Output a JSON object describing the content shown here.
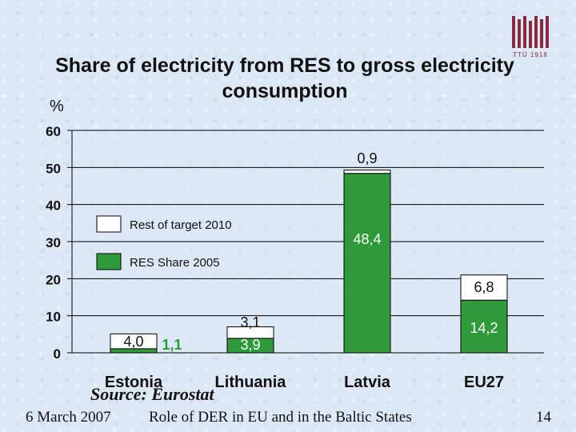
{
  "chart_data": {
    "type": "bar",
    "title": "Share of electricity from RES to gross electricity consumption",
    "ylabel": "%",
    "ylim": [
      0,
      60
    ],
    "yticks": [
      0,
      10,
      20,
      30,
      40,
      50,
      60
    ],
    "categories": [
      "Estonia",
      "Lithuania",
      "Latvia",
      "EU27"
    ],
    "series": [
      {
        "name": "RES Share 2005",
        "color": "#2e9a3a",
        "values": [
          1.1,
          3.9,
          48.4,
          14.2
        ],
        "labels": [
          "1,1",
          "3,9",
          "48,4",
          "14,2"
        ]
      },
      {
        "name": "Rest of target 2010",
        "color": "#ffffff",
        "values": [
          4.0,
          3.1,
          0.9,
          6.8
        ],
        "labels": [
          "4,0",
          "3,1",
          "0,9",
          "6,8"
        ]
      }
    ],
    "grid": true,
    "legend_position": "inside-left"
  },
  "source": "Source: Eurostat",
  "footer": {
    "date": "6 March 2007",
    "presentation": "Role of DER in EU and in the Baltic States",
    "page": "14"
  },
  "logo": {
    "text": "TTÜ 1918",
    "icon": "university-logo-icon"
  }
}
